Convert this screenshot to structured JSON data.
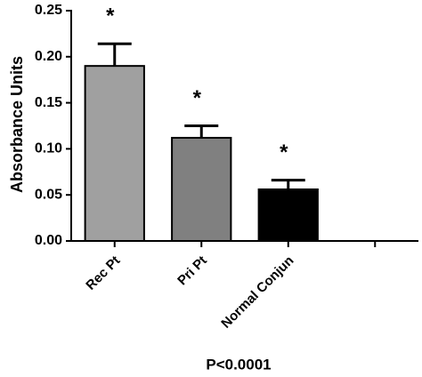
{
  "chart_data": {
    "type": "bar",
    "ylabel": "Absorbance Units",
    "xlabel": "P<0.0001",
    "categories": [
      "Rec Pt",
      "Pri Pt",
      "Normal Conjun",
      null
    ],
    "values": [
      0.19,
      0.112,
      0.056,
      null
    ],
    "errors": [
      0.024,
      0.013,
      0.01,
      null
    ],
    "colors": [
      "#a0a0a0",
      "#808080",
      "#000000",
      null
    ],
    "annotations": [
      "*",
      "*",
      "*",
      null
    ],
    "ylim": [
      0,
      0.25
    ],
    "yticks": [
      {
        "value": 0,
        "label": "0.00"
      },
      0.05,
      {
        "value": 0.1,
        "label": "0.10"
      },
      0.15,
      {
        "value": 0.2,
        "label": "0.20"
      },
      0.25
    ],
    "grid": false
  }
}
